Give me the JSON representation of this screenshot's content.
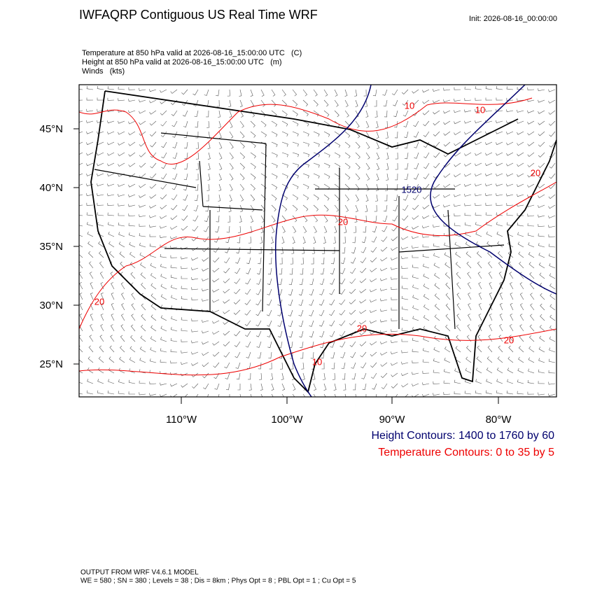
{
  "header": {
    "title": "IWFAQRP Contiguous US Real Time WRF",
    "init": "Init: 2026-08-16_00:00:00"
  },
  "fields": [
    "Temperature at 850 hPa valid at 2026-08-16_15:00:00 UTC   (C)",
    "Height at 850 hPa valid at 2026-08-16_15:00:00 UTC   (m)",
    "Winds   (kts)"
  ],
  "map": {
    "lat_labels": [
      "45°N",
      "40°N",
      "35°N",
      "30°N",
      "25°N"
    ],
    "lon_labels": [
      "110°W",
      "100°W",
      "90°W",
      "80°W"
    ],
    "contour_labels": [
      "10",
      "10",
      "20",
      "20",
      "20",
      "20",
      "1520",
      "10",
      "20"
    ]
  },
  "legend": {
    "height": "Height Contours: 1400 to 1760 by 60",
    "temperature": "Temperature Contours: 0 to 35 by 5"
  },
  "footer": {
    "model": "OUTPUT FROM WRF V4.6.1 MODEL",
    "settings": "WE = 580 ; SN = 380 ; Levels = 38 ; Dis = 8km ; Phys Opt = 8 ; PBL Opt = 1 ; Cu Opt = 5"
  }
}
